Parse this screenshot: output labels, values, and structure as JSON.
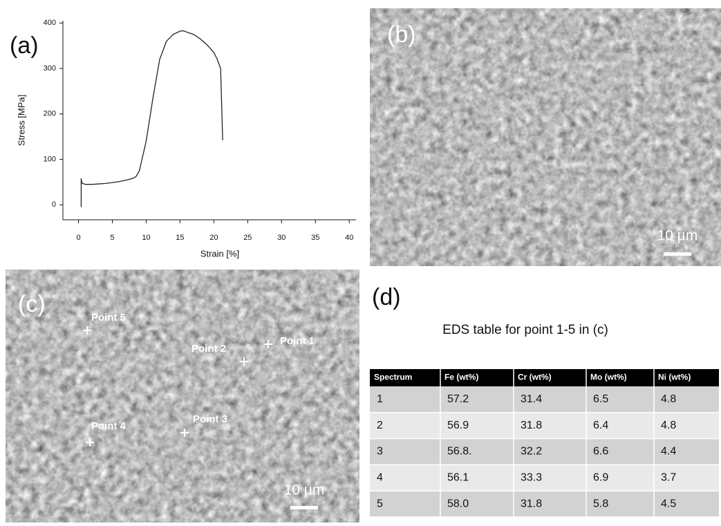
{
  "panels": {
    "a": "(a)",
    "b": "(b)",
    "c": "(c)",
    "d": "(d)"
  },
  "chart_data": {
    "type": "line",
    "x_label": "Strain [%]",
    "y_label": "Stress [MPa]",
    "x": [
      0.4,
      0.4,
      0.5,
      1,
      2,
      3,
      4,
      5,
      6,
      7,
      8,
      8.5,
      9,
      10,
      11,
      12,
      13,
      14,
      15,
      15.5,
      16,
      17,
      18,
      19,
      20,
      20.5,
      21,
      21.3
    ],
    "series": [
      {
        "color": "#222222",
        "values": [
          -5,
          58,
          48,
          45,
          45,
          46,
          47,
          49,
          51,
          54,
          58,
          62,
          75,
          140,
          235,
          320,
          360,
          375,
          382,
          383,
          380,
          375,
          365,
          352,
          335,
          320,
          300,
          142
        ]
      }
    ],
    "xlim": [
      -2.3,
      41
    ],
    "ylim": [
      -33,
      405
    ],
    "xticks": [
      0,
      5,
      10,
      15,
      20,
      25,
      30,
      35,
      40
    ],
    "yticks": [
      0,
      100,
      200,
      300,
      400
    ]
  },
  "image_b": {
    "scale_bar": "10 µm"
  },
  "image_c": {
    "scale_bar": "10 µm",
    "points": [
      "Point 1",
      "Point 2",
      "Point 3",
      "Point 4",
      "Point 5"
    ]
  },
  "table": {
    "title": "EDS table for point 1-5 in (c)",
    "header": [
      "Spectrum",
      "Fe (wt%)",
      "Cr (wt%)",
      "Mo (wt%)",
      "Ni (wt%)"
    ],
    "rows": [
      [
        "1",
        "57.2",
        "31.4",
        "6.5",
        "4.8"
      ],
      [
        "2",
        "56.9",
        "31.8",
        "6.4",
        "4.8"
      ],
      [
        "3",
        "56.8.",
        "32.2",
        "6.6",
        "4.4"
      ],
      [
        "4",
        "56.1",
        "33.3",
        "6.9",
        "3.7"
      ],
      [
        "5",
        "58.0",
        "31.8",
        "5.8",
        "4.5"
      ]
    ]
  }
}
